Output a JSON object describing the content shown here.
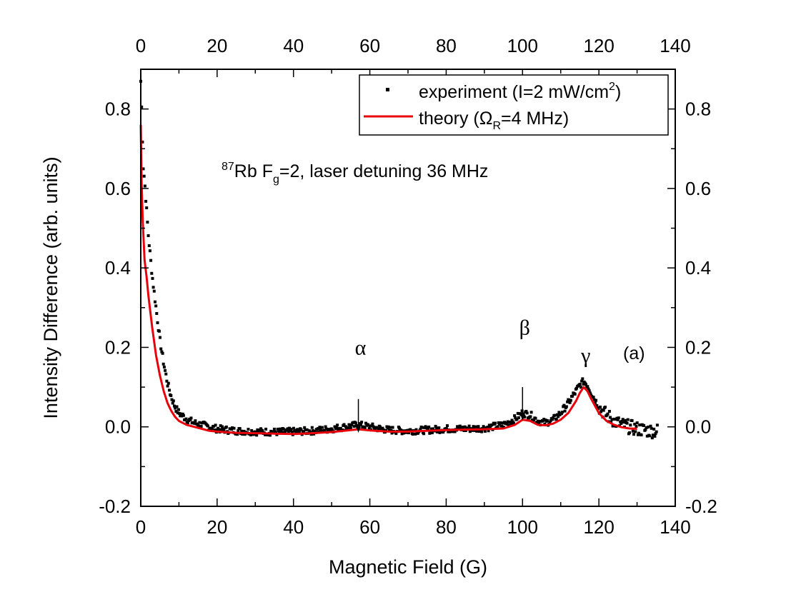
{
  "chart_data": {
    "type": "scatter",
    "xlabel": "Magnetic Field (G)",
    "ylabel": "Intensity Difference (arb. units)",
    "xlim": [
      0,
      140
    ],
    "ylim": [
      -0.2,
      0.9
    ],
    "x_ticks": [
      "0",
      "20",
      "40",
      "60",
      "80",
      "100",
      "120",
      "140"
    ],
    "y_ticks": [
      "-0.2",
      "0.0",
      "0.2",
      "0.4",
      "0.6",
      "0.8"
    ],
    "grid": false,
    "legend_position": "top-right",
    "legend": {
      "experiment": {
        "text": "experiment (I=2 mW/cm",
        "sup": "2",
        "tail": ")"
      },
      "theory": {
        "text": "theory (Ω",
        "sub": "R",
        "tail": "=4 MHz)"
      }
    },
    "annotation": {
      "sup": "87",
      "main": "Rb F",
      "sub": "g",
      "tail": "=2, laser detuning 36 MHz"
    },
    "panel_label": "(a)",
    "markers": [
      {
        "label": "α",
        "x": 57,
        "y_tip": -0.015,
        "y_top": 0.07
      },
      {
        "label": "β",
        "x": 100,
        "y_tip": 0.015,
        "y_top": 0.1
      },
      {
        "label": "γ",
        "x": 116
      }
    ],
    "series": [
      {
        "name": "experiment (I=2 mW/cm2)",
        "style": "scatter",
        "color": "#000000",
        "x": [
          0,
          0.3,
          0.6,
          1,
          1.5,
          2,
          3,
          4,
          5,
          6,
          7,
          8,
          9,
          10,
          12,
          14,
          16,
          18,
          20,
          25,
          30,
          35,
          40,
          45,
          50,
          55,
          57,
          60,
          65,
          70,
          75,
          80,
          85,
          90,
          95,
          98,
          100,
          102,
          104,
          106,
          108,
          110,
          112,
          114,
          115,
          116,
          117,
          118,
          120,
          122,
          124,
          126,
          128,
          130,
          132,
          134,
          135.5
        ],
        "y": [
          0.87,
          0.78,
          0.66,
          0.62,
          0.55,
          0.48,
          0.38,
          0.3,
          0.22,
          0.16,
          0.11,
          0.075,
          0.05,
          0.035,
          0.02,
          0.01,
          0.005,
          0.0,
          -0.005,
          -0.01,
          -0.012,
          -0.013,
          -0.012,
          -0.01,
          -0.005,
          0.002,
          0.005,
          0.0,
          -0.008,
          -0.01,
          -0.008,
          -0.005,
          -0.005,
          -0.003,
          0.005,
          0.02,
          0.035,
          0.03,
          0.015,
          0.01,
          0.018,
          0.035,
          0.06,
          0.09,
          0.105,
          0.115,
          0.105,
          0.085,
          0.05,
          0.03,
          0.015,
          0.005,
          0.0,
          -0.005,
          -0.008,
          -0.01,
          -0.01
        ]
      },
      {
        "name": "theory (ΩR=4 MHz)",
        "style": "line",
        "color": "#e8000b",
        "x": [
          0,
          0.2,
          0.5,
          1,
          1.5,
          2,
          3,
          4,
          5,
          6,
          7,
          8,
          9,
          10,
          12,
          14,
          16,
          18,
          20,
          25,
          30,
          35,
          40,
          45,
          50,
          55,
          57,
          60,
          65,
          70,
          75,
          80,
          85,
          90,
          95,
          98,
          100,
          102,
          104,
          106,
          108,
          110,
          112,
          114,
          115,
          116,
          117,
          118,
          120,
          122,
          124,
          126,
          128,
          130
        ],
        "y": [
          0.76,
          0.62,
          0.52,
          0.42,
          0.38,
          0.33,
          0.25,
          0.18,
          0.13,
          0.09,
          0.06,
          0.04,
          0.025,
          0.015,
          0.005,
          0.0,
          -0.005,
          -0.01,
          -0.012,
          -0.015,
          -0.016,
          -0.017,
          -0.018,
          -0.016,
          -0.013,
          -0.008,
          -0.006,
          -0.009,
          -0.012,
          -0.012,
          -0.01,
          -0.008,
          -0.007,
          -0.006,
          -0.004,
          0.005,
          0.018,
          0.015,
          0.005,
          0.004,
          0.008,
          0.018,
          0.035,
          0.065,
          0.085,
          0.1,
          0.09,
          0.07,
          0.035,
          0.015,
          0.005,
          -0.001,
          -0.004,
          -0.005
        ]
      }
    ]
  }
}
